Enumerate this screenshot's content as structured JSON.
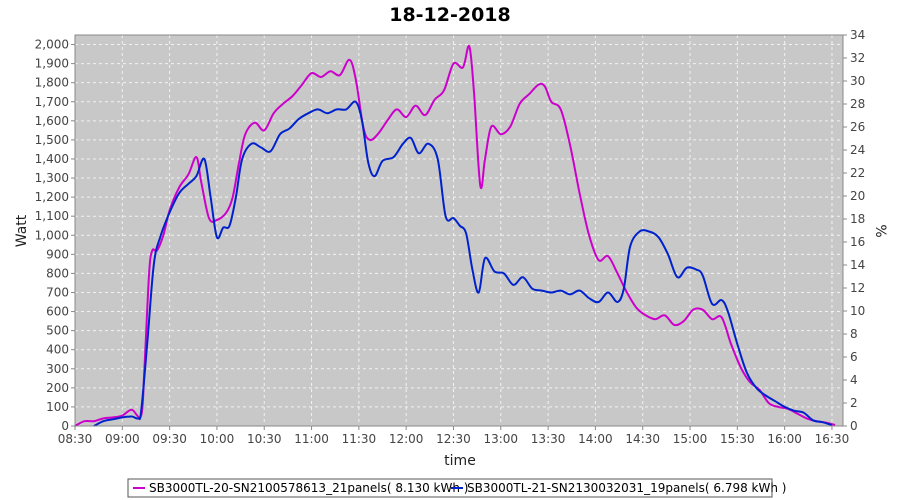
{
  "chart_data": {
    "type": "line",
    "title": "18-12-2018",
    "xlabel": "time",
    "ylabel": "Watt",
    "y2label": "%",
    "xlim": [
      "08:30",
      "16:37"
    ],
    "ylim": [
      0,
      2050
    ],
    "y2lim": [
      0,
      34
    ],
    "x_ticks": [
      "08:30",
      "09:00",
      "09:30",
      "10:00",
      "10:30",
      "11:00",
      "11:30",
      "12:00",
      "12:30",
      "13:00",
      "13:30",
      "14:00",
      "14:30",
      "15:00",
      "15:30",
      "16:00",
      "16:30"
    ],
    "y_ticks": [
      "0",
      "100",
      "200",
      "300",
      "400",
      "500",
      "600",
      "700",
      "800",
      "900",
      "1,000",
      "1,100",
      "1,200",
      "1,300",
      "1,400",
      "1,500",
      "1,600",
      "1,700",
      "1,800",
      "1,900",
      "2,000"
    ],
    "y2_ticks": [
      "0",
      "2",
      "4",
      "6",
      "8",
      "10",
      "12",
      "14",
      "16",
      "18",
      "20",
      "22",
      "24",
      "26",
      "28",
      "30",
      "32",
      "34"
    ],
    "grid": true,
    "legend": "bottom",
    "series": [
      {
        "name": "SB3000TL-20-SN2100578613_21panels( 8.130 kWh )",
        "color": "#cc00cc",
        "points": [
          [
            "08:30",
            0
          ],
          [
            "08:36",
            25
          ],
          [
            "08:42",
            25
          ],
          [
            "08:48",
            40
          ],
          [
            "08:54",
            45
          ],
          [
            "09:00",
            55
          ],
          [
            "09:06",
            85
          ],
          [
            "09:12",
            55
          ],
          [
            "09:14",
            300
          ],
          [
            "09:17",
            800
          ],
          [
            "09:19",
            920
          ],
          [
            "09:22",
            920
          ],
          [
            "09:26",
            1000
          ],
          [
            "09:30",
            1130
          ],
          [
            "09:36",
            1250
          ],
          [
            "09:42",
            1320
          ],
          [
            "09:47",
            1410
          ],
          [
            "09:50",
            1280
          ],
          [
            "09:55",
            1090
          ],
          [
            "10:00",
            1080
          ],
          [
            "10:06",
            1120
          ],
          [
            "10:10",
            1200
          ],
          [
            "10:14",
            1380
          ],
          [
            "10:18",
            1530
          ],
          [
            "10:24",
            1590
          ],
          [
            "10:30",
            1550
          ],
          [
            "10:36",
            1640
          ],
          [
            "10:42",
            1690
          ],
          [
            "10:48",
            1730
          ],
          [
            "10:54",
            1790
          ],
          [
            "11:00",
            1850
          ],
          [
            "11:06",
            1830
          ],
          [
            "11:12",
            1860
          ],
          [
            "11:18",
            1840
          ],
          [
            "11:24",
            1920
          ],
          [
            "11:28",
            1820
          ],
          [
            "11:33",
            1560
          ],
          [
            "11:37",
            1500
          ],
          [
            "11:42",
            1530
          ],
          [
            "11:48",
            1600
          ],
          [
            "11:54",
            1660
          ],
          [
            "12:00",
            1620
          ],
          [
            "12:06",
            1680
          ],
          [
            "12:12",
            1630
          ],
          [
            "12:18",
            1710
          ],
          [
            "12:24",
            1760
          ],
          [
            "12:30",
            1900
          ],
          [
            "12:36",
            1880
          ],
          [
            "12:40",
            1990
          ],
          [
            "12:43",
            1750
          ],
          [
            "12:47",
            1260
          ],
          [
            "12:50",
            1400
          ],
          [
            "12:54",
            1570
          ],
          [
            "13:00",
            1530
          ],
          [
            "13:06",
            1570
          ],
          [
            "13:12",
            1690
          ],
          [
            "13:18",
            1740
          ],
          [
            "13:24",
            1790
          ],
          [
            "13:28",
            1780
          ],
          [
            "13:32",
            1700
          ],
          [
            "13:38",
            1660
          ],
          [
            "13:44",
            1470
          ],
          [
            "13:50",
            1220
          ],
          [
            "13:56",
            1000
          ],
          [
            "14:02",
            870
          ],
          [
            "14:08",
            890
          ],
          [
            "14:14",
            800
          ],
          [
            "14:20",
            700
          ],
          [
            "14:26",
            620
          ],
          [
            "14:32",
            580
          ],
          [
            "14:38",
            560
          ],
          [
            "14:44",
            580
          ],
          [
            "14:50",
            530
          ],
          [
            "14:56",
            550
          ],
          [
            "15:02",
            610
          ],
          [
            "15:08",
            610
          ],
          [
            "15:14",
            560
          ],
          [
            "15:20",
            570
          ],
          [
            "15:26",
            430
          ],
          [
            "15:32",
            310
          ],
          [
            "15:38",
            230
          ],
          [
            "15:44",
            190
          ],
          [
            "15:50",
            120
          ],
          [
            "15:56",
            100
          ],
          [
            "16:02",
            90
          ],
          [
            "16:08",
            65
          ],
          [
            "16:14",
            40
          ],
          [
            "16:20",
            25
          ],
          [
            "16:26",
            18
          ],
          [
            "16:32",
            5
          ]
        ]
      },
      {
        "name": "SB3000TL-21-SN2130032031_19panels( 6.798 kWh )",
        "color": "#0022cc",
        "points": [
          [
            "08:42",
            0
          ],
          [
            "08:48",
            25
          ],
          [
            "08:54",
            35
          ],
          [
            "09:00",
            45
          ],
          [
            "09:06",
            50
          ],
          [
            "09:10",
            40
          ],
          [
            "09:12",
            80
          ],
          [
            "09:16",
            450
          ],
          [
            "09:20",
            850
          ],
          [
            "09:24",
            990
          ],
          [
            "09:30",
            1120
          ],
          [
            "09:36",
            1220
          ],
          [
            "09:42",
            1270
          ],
          [
            "09:47",
            1310
          ],
          [
            "09:52",
            1400
          ],
          [
            "09:56",
            1200
          ],
          [
            "10:00",
            990
          ],
          [
            "10:04",
            1040
          ],
          [
            "10:08",
            1050
          ],
          [
            "10:12",
            1200
          ],
          [
            "10:16",
            1400
          ],
          [
            "10:22",
            1480
          ],
          [
            "10:28",
            1460
          ],
          [
            "10:34",
            1440
          ],
          [
            "10:40",
            1530
          ],
          [
            "10:46",
            1560
          ],
          [
            "10:52",
            1610
          ],
          [
            "10:58",
            1640
          ],
          [
            "11:04",
            1660
          ],
          [
            "11:10",
            1640
          ],
          [
            "11:16",
            1660
          ],
          [
            "11:22",
            1660
          ],
          [
            "11:28",
            1700
          ],
          [
            "11:32",
            1600
          ],
          [
            "11:36",
            1380
          ],
          [
            "11:40",
            1310
          ],
          [
            "11:45",
            1390
          ],
          [
            "11:52",
            1410
          ],
          [
            "11:58",
            1480
          ],
          [
            "12:03",
            1510
          ],
          [
            "12:08",
            1430
          ],
          [
            "12:14",
            1480
          ],
          [
            "12:20",
            1400
          ],
          [
            "12:25",
            1100
          ],
          [
            "12:30",
            1090
          ],
          [
            "12:34",
            1050
          ],
          [
            "12:38",
            1010
          ],
          [
            "12:42",
            820
          ],
          [
            "12:46",
            700
          ],
          [
            "12:50",
            880
          ],
          [
            "12:56",
            810
          ],
          [
            "13:02",
            800
          ],
          [
            "13:08",
            740
          ],
          [
            "13:14",
            780
          ],
          [
            "13:20",
            720
          ],
          [
            "13:26",
            710
          ],
          [
            "13:32",
            700
          ],
          [
            "13:38",
            710
          ],
          [
            "13:44",
            690
          ],
          [
            "13:50",
            710
          ],
          [
            "13:56",
            670
          ],
          [
            "14:02",
            650
          ],
          [
            "14:08",
            700
          ],
          [
            "14:14",
            650
          ],
          [
            "14:18",
            720
          ],
          [
            "14:22",
            940
          ],
          [
            "14:28",
            1020
          ],
          [
            "14:34",
            1020
          ],
          [
            "14:40",
            990
          ],
          [
            "14:46",
            900
          ],
          [
            "14:52",
            780
          ],
          [
            "14:58",
            830
          ],
          [
            "15:04",
            820
          ],
          [
            "15:08",
            790
          ],
          [
            "15:14",
            640
          ],
          [
            "15:20",
            660
          ],
          [
            "15:24",
            600
          ],
          [
            "15:30",
            430
          ],
          [
            "15:36",
            280
          ],
          [
            "15:42",
            200
          ],
          [
            "15:48",
            160
          ],
          [
            "15:54",
            130
          ],
          [
            "16:00",
            100
          ],
          [
            "16:06",
            80
          ],
          [
            "16:12",
            70
          ],
          [
            "16:18",
            30
          ],
          [
            "16:24",
            20
          ],
          [
            "16:30",
            5
          ]
        ]
      }
    ]
  }
}
